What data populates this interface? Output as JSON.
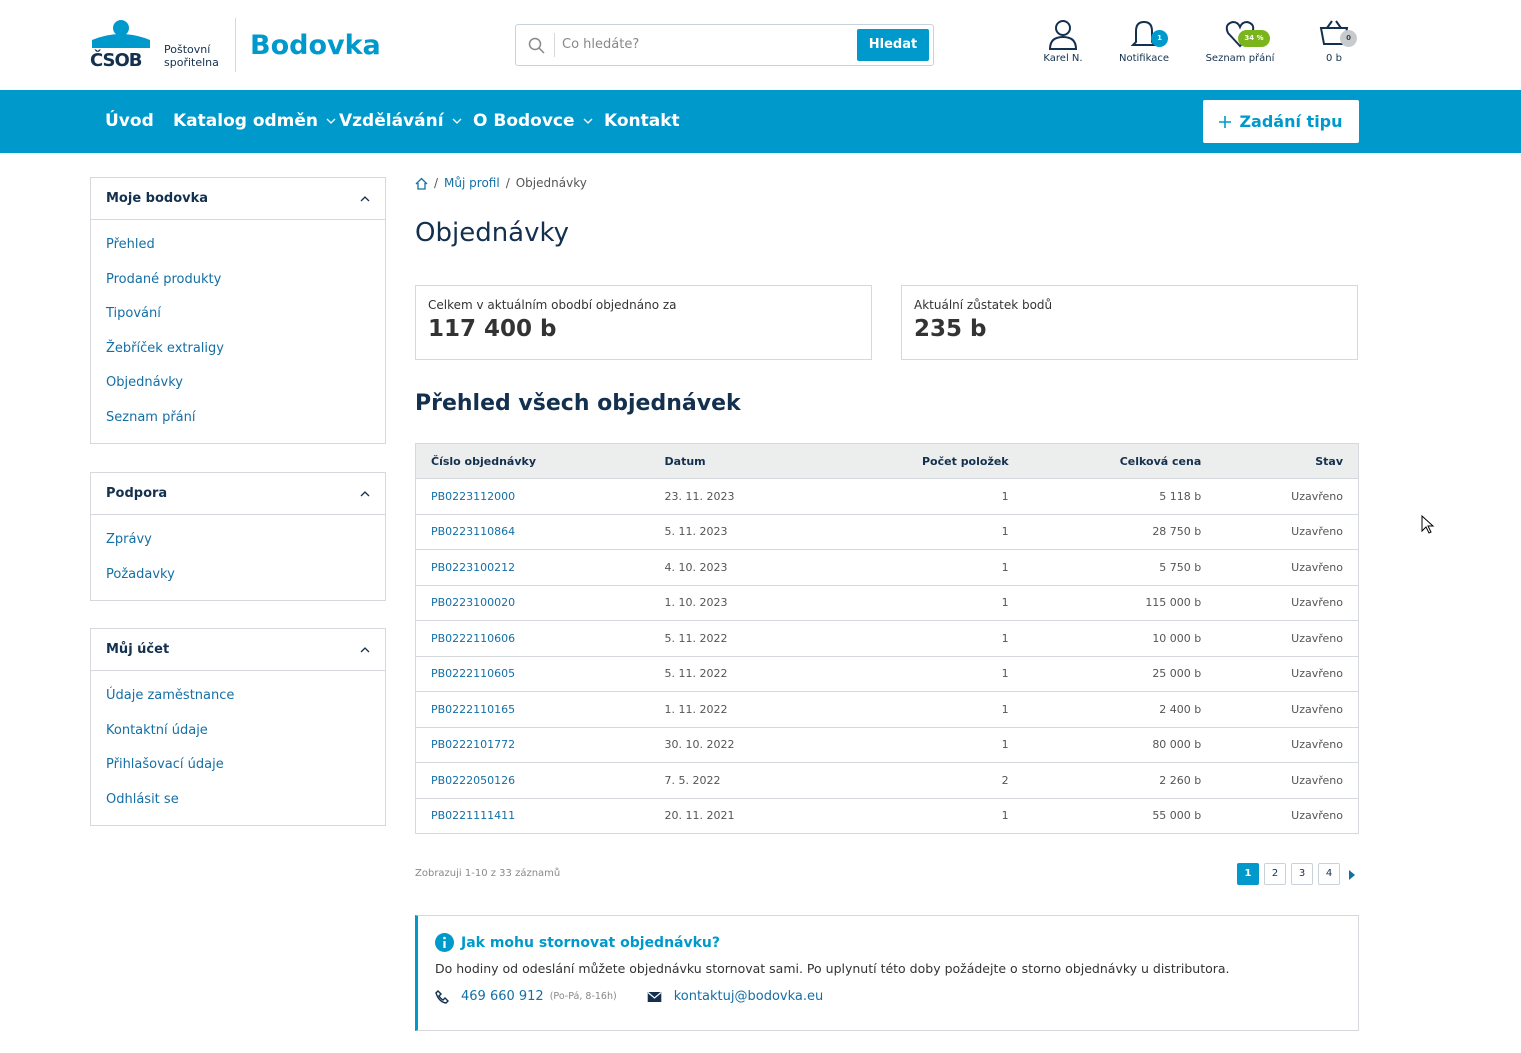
{
  "header": {
    "logo_brand": "ČSOB",
    "logo_sub_1": "Poštovní",
    "logo_sub_2": "spořitelna",
    "site_name": "Bodovka",
    "search_placeholder": "Co hledáte?",
    "search_button": "Hledat",
    "user": "Karel N.",
    "notifications": "Notifikace",
    "notifications_count": "1",
    "wishlist": "Seznam přání",
    "wishlist_badge": "34 %",
    "cart": "0 b",
    "cart_badge": "0"
  },
  "nav": {
    "items": [
      "Úvod",
      "Katalog odměn",
      "Vzdělávání",
      "O Bodovce",
      "Kontakt"
    ],
    "dropdown": [
      false,
      true,
      true,
      true,
      false
    ],
    "cta": "Zadání tipu"
  },
  "sidebar": [
    {
      "title": "Moje bodovka",
      "links": [
        "Přehled",
        "Prodané produkty",
        "Tipování",
        "Žebříček extraligy",
        "Objednávky",
        "Seznam přání"
      ]
    },
    {
      "title": "Podpora",
      "links": [
        "Zprávy",
        "Požadavky"
      ]
    },
    {
      "title": "Můj účet",
      "links": [
        "Údaje zaměstnance",
        "Kontaktní údaje",
        "Přihlašovací údaje",
        "Odhlásit se"
      ]
    }
  ],
  "breadcrumb": [
    "Můj profil",
    "Objednávky"
  ],
  "page_title": "Objednávky",
  "stats": [
    {
      "label": "Celkem v aktuálním obodbí objednáno za",
      "value": "117 400 b"
    },
    {
      "label": "Aktuální zůstatek bodů",
      "value": "235 b"
    }
  ],
  "table": {
    "title": "Přehled všech objednávek",
    "columns": [
      "Číslo objednávky",
      "Datum",
      "Počet položek",
      "Celková cena",
      "Stav"
    ],
    "rows": [
      [
        "PB0223112000",
        "23. 11. 2023",
        "1",
        "5 118 b",
        "Uzavřeno"
      ],
      [
        "PB0223110864",
        "5. 11. 2023",
        "1",
        "28 750 b",
        "Uzavřeno"
      ],
      [
        "PB0223100212",
        "4. 10. 2023",
        "1",
        "5 750 b",
        "Uzavřeno"
      ],
      [
        "PB0223100020",
        "1. 10. 2023",
        "1",
        "115 000 b",
        "Uzavřeno"
      ],
      [
        "PB0222110606",
        "5. 11. 2022",
        "1",
        "10 000 b",
        "Uzavřeno"
      ],
      [
        "PB0222110605",
        "5. 11. 2022",
        "1",
        "25 000 b",
        "Uzavřeno"
      ],
      [
        "PB0222110165",
        "1. 11. 2022",
        "1",
        "2 400 b",
        "Uzavřeno"
      ],
      [
        "PB0222101772",
        "30. 10. 2022",
        "1",
        "80 000 b",
        "Uzavřeno"
      ],
      [
        "PB0222050126",
        "7. 5. 2022",
        "2",
        "2 260 b",
        "Uzavřeno"
      ],
      [
        "PB0221111411",
        "20. 11. 2021",
        "1",
        "55 000 b",
        "Uzavřeno"
      ]
    ]
  },
  "pagination": {
    "summary": "Zobrazuji 1-10 z 33 záznamů",
    "pages": [
      "1",
      "2",
      "3",
      "4"
    ]
  },
  "info": {
    "title": "Jak mohu stornovat objednávku?",
    "text": "Do hodiny od odeslání můžete objednávku stornovat sami. Po uplynutí této doby požádejte o storno objednávky u distributora.",
    "phone": "469 660 912",
    "hours": "(Po-Pá, 8-16h)",
    "email": "kontaktuj@bodovka.eu"
  }
}
